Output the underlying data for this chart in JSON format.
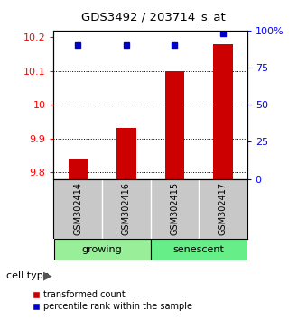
{
  "title": "GDS3492 / 203714_s_at",
  "samples": [
    "GSM302414",
    "GSM302416",
    "GSM302415",
    "GSM302417"
  ],
  "transformed_counts": [
    9.84,
    9.93,
    10.1,
    10.18
  ],
  "percentile_ranks": [
    90,
    90,
    90,
    98
  ],
  "ylim_left": [
    9.78,
    10.22
  ],
  "ylim_right": [
    0,
    100
  ],
  "yticks_left": [
    9.8,
    9.9,
    10.0,
    10.1,
    10.2
  ],
  "yticks_right": [
    0,
    25,
    50,
    75,
    100
  ],
  "ytick_labels_left": [
    "9.8",
    "9.9",
    "10",
    "10.1",
    "10.2"
  ],
  "ytick_labels_right": [
    "0",
    "25",
    "50",
    "75",
    "100%"
  ],
  "bar_color": "#cc0000",
  "dot_color": "#0000cc",
  "bar_width": 0.4,
  "legend_bar_label": "transformed count",
  "legend_dot_label": "percentile rank within the sample",
  "label_area_color": "#c8c8c8",
  "group_area_color_growing": "#99ee99",
  "group_area_color_senescent": "#66ee88",
  "cell_type_label": "cell type"
}
